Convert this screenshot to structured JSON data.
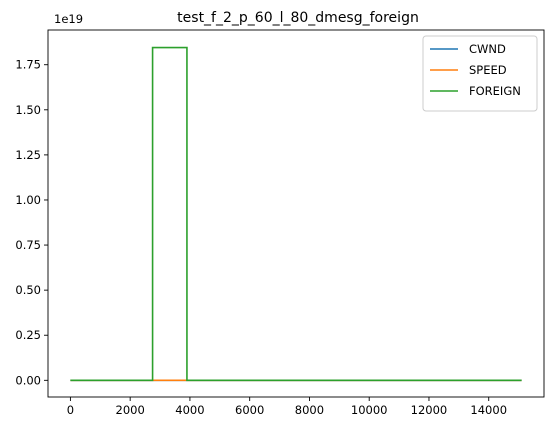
{
  "chart_data": {
    "type": "line",
    "title": "test_f_2_p_60_l_80_dmesg_foreign",
    "xlabel": "",
    "ylabel": "",
    "y_offset_text": "1e19",
    "xlim": [
      -750,
      15850
    ],
    "ylim": [
      -0.0925,
      1.9425
    ],
    "y_multiplier": 1e+19,
    "x_ticks": [
      0,
      2000,
      4000,
      6000,
      8000,
      10000,
      12000,
      14000
    ],
    "x_tick_labels": [
      "0",
      "2000",
      "4000",
      "6000",
      "8000",
      "10000",
      "12000",
      "14000"
    ],
    "y_ticks": [
      0.0,
      0.25,
      0.5,
      0.75,
      1.0,
      1.25,
      1.5,
      1.75
    ],
    "y_tick_labels": [
      "0.00",
      "0.25",
      "0.50",
      "0.75",
      "1.00",
      "1.25",
      "1.50",
      "1.75"
    ],
    "grid": false,
    "legend_position": "top-right",
    "series": [
      {
        "name": "CWND",
        "color": "#1f77b4",
        "x": [
          0,
          15100
        ],
        "y": [
          0,
          0
        ]
      },
      {
        "name": "SPEED",
        "color": "#ff7f0e",
        "x": [
          0,
          15100
        ],
        "y": [
          0,
          0
        ]
      },
      {
        "name": "FOREIGN",
        "color": "#2ca02c",
        "x": [
          0,
          2750,
          2750,
          3900,
          3900,
          15100
        ],
        "y": [
          0,
          0,
          1.845,
          1.845,
          0,
          0
        ]
      }
    ]
  }
}
